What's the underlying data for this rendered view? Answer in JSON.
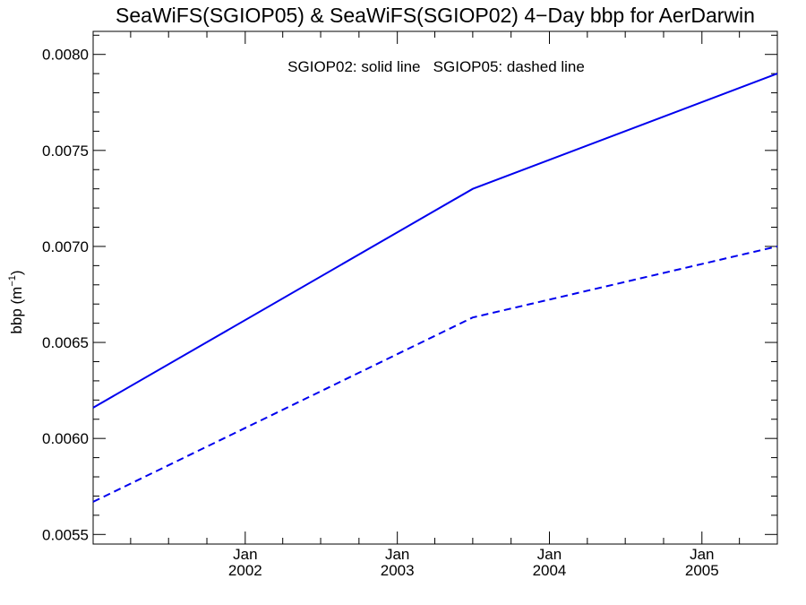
{
  "chart_data": {
    "type": "line",
    "title": "SeaWiFS(SGIOP05) & SeaWiFS(SGIOP02) 4−Day bbp for AerDarwin",
    "ylabel": "bbp (m",
    "ylabel_sup": "−1",
    "ylabel_close": ")",
    "xlabel": "",
    "annotation": "SGIOP02: solid line   SGIOP05: dashed line",
    "x_start": "2001-01-01",
    "x_end": "2005-07-01",
    "ylim": [
      0.00545,
      0.00812
    ],
    "y_ticks": [
      0.0055,
      0.006,
      0.0065,
      0.007,
      0.0075,
      0.008
    ],
    "y_tick_labels": [
      "0.0055",
      "0.0060",
      "0.0065",
      "0.0070",
      "0.0075",
      "0.0080"
    ],
    "x_major_ticks": [
      {
        "date": "2002-01-01",
        "month": "Jan",
        "year": "2002"
      },
      {
        "date": "2003-01-01",
        "month": "Jan",
        "year": "2003"
      },
      {
        "date": "2004-01-01",
        "month": "Jan",
        "year": "2004"
      },
      {
        "date": "2005-01-01",
        "month": "Jan",
        "year": "2005"
      }
    ],
    "grid": false,
    "series": [
      {
        "name": "SGIOP02",
        "style": "solid",
        "color": "#0000ee",
        "points": [
          {
            "x": "2001-01-01",
            "y": 0.00616
          },
          {
            "x": "2003-07-01",
            "y": 0.0073
          },
          {
            "x": "2005-07-01",
            "y": 0.0079
          }
        ]
      },
      {
        "name": "SGIOP05",
        "style": "dashed",
        "color": "#0000ee",
        "points": [
          {
            "x": "2001-01-01",
            "y": 0.00567
          },
          {
            "x": "2003-07-01",
            "y": 0.00663
          },
          {
            "x": "2005-07-01",
            "y": 0.007
          }
        ]
      }
    ]
  }
}
